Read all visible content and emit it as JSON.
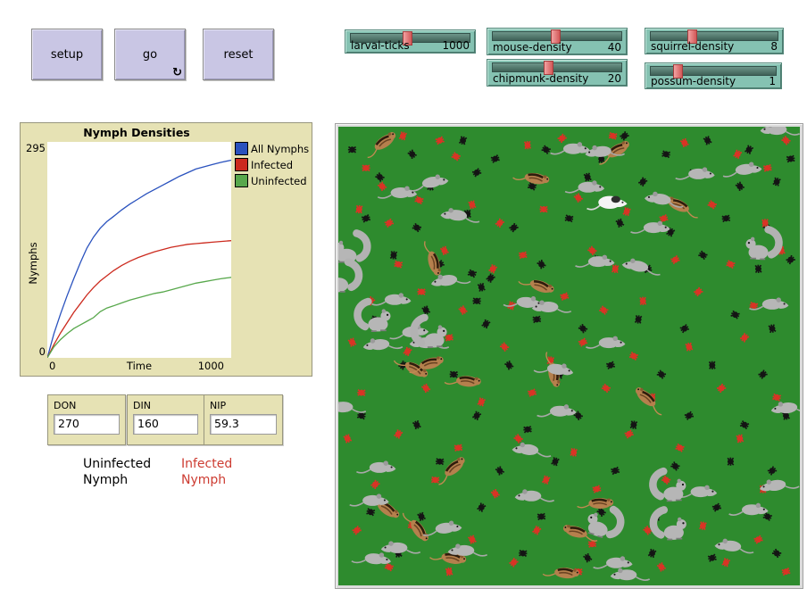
{
  "buttons": {
    "setup_label": "setup",
    "go_label": "go",
    "go_forever_icon": "↻",
    "reset_label": "reset"
  },
  "sliders": [
    {
      "name": "larval-ticks",
      "value": "1000",
      "handle_pct": 47
    },
    {
      "name": "mouse-density",
      "value": "40",
      "handle_pct": 48
    },
    {
      "name": "squirrel-density",
      "value": "8",
      "handle_pct": 33
    },
    {
      "name": "chipmunk-density",
      "value": "20",
      "handle_pct": 43
    },
    {
      "name": "possum-density",
      "value": "1",
      "handle_pct": 23
    }
  ],
  "chart_data": {
    "type": "line",
    "title": "Nymph Densities",
    "xlabel": "Time",
    "ylabel": "Nymphs",
    "xlim": [
      0,
      1114
    ],
    "ylim": [
      0,
      295
    ],
    "x_tick_labels": [
      "0",
      "1000"
    ],
    "y_tick_labels": [
      "0",
      "295"
    ],
    "grid": false,
    "legend_position": "right-top",
    "x": [
      0,
      40,
      80,
      120,
      160,
      200,
      240,
      280,
      320,
      360,
      400,
      450,
      500,
      550,
      600,
      650,
      700,
      750,
      800,
      850,
      900,
      950,
      1000,
      1050,
      1114
    ],
    "series": [
      {
        "name": "All Nymphs",
        "color": "#2a52be",
        "values": [
          0,
          33,
          60,
          85,
          108,
          130,
          150,
          165,
          177,
          186,
          193,
          202,
          210,
          217,
          224,
          230,
          236,
          242,
          248,
          253,
          258,
          261,
          264,
          267,
          270
        ]
      },
      {
        "name": "Infected",
        "color": "#cc2a1e",
        "values": [
          0,
          18,
          34,
          48,
          62,
          74,
          86,
          96,
          105,
          112,
          119,
          126,
          132,
          137,
          141,
          145,
          148,
          151,
          153,
          155,
          156,
          157,
          158,
          159,
          160
        ]
      },
      {
        "name": "Uninfected",
        "color": "#58a84c",
        "values": [
          0,
          15,
          25,
          33,
          40,
          45,
          50,
          55,
          63,
          68,
          71,
          75,
          79,
          82,
          85,
          88,
          90,
          93,
          96,
          99,
          102,
          104,
          106,
          108,
          110
        ]
      }
    ],
    "legend": [
      {
        "label": "All Nymphs",
        "color": "#2a52be"
      },
      {
        "label": "Infected",
        "color": "#cc2a1e"
      },
      {
        "label": "Uninfected",
        "color": "#58a84c"
      }
    ]
  },
  "monitors": [
    {
      "label": "DON",
      "value": "270"
    },
    {
      "label": "DIN",
      "value": "160"
    },
    {
      "label": "NIP",
      "value": "59.3"
    }
  ],
  "notes": [
    {
      "lines": "Uninfected\nNymph",
      "color": "#000000"
    },
    {
      "lines": "Infected\nNymph",
      "color": "#cd3c32"
    }
  ],
  "world": {
    "background": "#2e8b2e",
    "colors": {
      "infected_tick": "#da3325",
      "uninfected_tick": "#141414"
    },
    "mice": [
      [
        13.5,
        14.4,
        0,
        1
      ],
      [
        20.3,
        12.1,
        -10,
        1
      ],
      [
        25.7,
        19.3,
        5,
        -1
      ],
      [
        50.9,
        4.8,
        0,
        1
      ],
      [
        57,
        5.4,
        -5,
        -1
      ],
      [
        54.1,
        13.2,
        0,
        1
      ],
      [
        69.9,
        15.8,
        8,
        -1
      ],
      [
        78,
        10.3,
        0,
        1
      ],
      [
        88.2,
        9.3,
        -6,
        1
      ],
      [
        95,
        0.6,
        0,
        -1
      ],
      [
        68.3,
        22,
        0,
        1
      ],
      [
        65,
        30.4,
        10,
        -1
      ],
      [
        56.3,
        29.4,
        0,
        1
      ],
      [
        23.6,
        33.5,
        -8,
        -1
      ],
      [
        12.2,
        37.7,
        0,
        1
      ],
      [
        40.8,
        38.3,
        5,
        1
      ],
      [
        45.5,
        39.3,
        0,
        -1
      ],
      [
        58.6,
        47.1,
        0,
        1
      ],
      [
        8.9,
        47.5,
        -5,
        -1
      ],
      [
        94,
        38.7,
        0,
        1
      ],
      [
        47.4,
        52.9,
        8,
        1
      ],
      [
        1,
        61.1,
        0,
        -1
      ],
      [
        48,
        62,
        0,
        1
      ],
      [
        97.3,
        61.3,
        -5,
        -1
      ],
      [
        8.9,
        74.3,
        0,
        1
      ],
      [
        41.2,
        70.4,
        5,
        -1
      ],
      [
        7.4,
        81.5,
        0,
        1
      ],
      [
        41.8,
        80.5,
        0,
        -1
      ],
      [
        23.2,
        87.5,
        -6,
        1
      ],
      [
        12.8,
        91.8,
        0,
        -1
      ],
      [
        7.9,
        94.2,
        5,
        1
      ],
      [
        27.3,
        92.4,
        0,
        -1
      ],
      [
        78.5,
        79.6,
        0,
        1
      ],
      [
        94.8,
        78.2,
        -8,
        -1
      ],
      [
        89.6,
        83.5,
        0,
        1
      ],
      [
        85.1,
        91.4,
        5,
        -1
      ],
      [
        60.2,
        95.1,
        0,
        1
      ],
      [
        62.5,
        97.7,
        0,
        -1
      ],
      [
        16,
        44.7,
        -5,
        1
      ],
      [
        19,
        47.1,
        0,
        -1
      ]
    ],
    "squirrels": [
      [
        2.3,
        26.7,
        0,
        -1
      ],
      [
        0.5,
        33,
        0,
        -1
      ],
      [
        8.1,
        41.6,
        0,
        1
      ],
      [
        20.3,
        45.1,
        0,
        1
      ],
      [
        91.5,
        25.9,
        0,
        -1
      ],
      [
        72.1,
        78.6,
        0,
        1
      ],
      [
        72.2,
        87,
        0,
        1
      ],
      [
        57.1,
        86.4,
        15,
        -1
      ]
    ],
    "chipmunks": [
      [
        10,
        3.3,
        -35,
        1
      ],
      [
        60.5,
        5.1,
        -30,
        1
      ],
      [
        42.8,
        11.3,
        10,
        1
      ],
      [
        73.7,
        17.1,
        25,
        -1
      ],
      [
        20.7,
        29.6,
        75,
        1
      ],
      [
        43.9,
        34.8,
        20,
        1
      ],
      [
        16.7,
        52.9,
        30,
        1
      ],
      [
        20,
        51.6,
        -15,
        1
      ],
      [
        28,
        55.5,
        5,
        1
      ],
      [
        46.7,
        53.9,
        80,
        1
      ],
      [
        66.7,
        59.1,
        40,
        -1
      ],
      [
        25.1,
        74.3,
        -40,
        1
      ],
      [
        10.6,
        83.4,
        35,
        1
      ],
      [
        17.4,
        87.9,
        55,
        1
      ],
      [
        24.8,
        94.1,
        10,
        1
      ],
      [
        56.7,
        82.1,
        0,
        1
      ],
      [
        51.5,
        88.3,
        15,
        -1
      ],
      [
        49.3,
        97.3,
        5,
        1
      ]
    ],
    "possums": [
      [
        58.8,
        16.5,
        0,
        1
      ]
    ],
    "infected_ticks": [
      [
        6,
        9
      ],
      [
        9.5,
        13
      ],
      [
        14,
        2
      ],
      [
        22,
        3
      ],
      [
        25.5,
        6.5
      ],
      [
        41,
        4
      ],
      [
        48.5,
        2.5
      ],
      [
        59.5,
        2
      ],
      [
        75,
        3.5
      ],
      [
        86.5,
        6
      ],
      [
        93,
        9
      ],
      [
        97,
        3
      ],
      [
        4.5,
        18
      ],
      [
        11,
        21
      ],
      [
        17.5,
        16
      ],
      [
        29,
        17
      ],
      [
        35,
        21
      ],
      [
        44.5,
        18
      ],
      [
        52,
        15.5
      ],
      [
        62.5,
        18.5
      ],
      [
        70.5,
        20
      ],
      [
        81,
        17
      ],
      [
        92.5,
        21
      ],
      [
        2.5,
        28
      ],
      [
        13,
        30
      ],
      [
        23,
        27
      ],
      [
        33.5,
        31
      ],
      [
        40,
        28
      ],
      [
        55,
        27
      ],
      [
        60,
        31
      ],
      [
        73,
        29
      ],
      [
        85,
        30
      ],
      [
        96,
        27
      ],
      [
        7,
        38
      ],
      [
        18,
        36
      ],
      [
        27,
        40
      ],
      [
        37.5,
        39
      ],
      [
        49,
        37
      ],
      [
        57.5,
        40
      ],
      [
        66,
        38
      ],
      [
        78,
        36
      ],
      [
        90,
        39
      ],
      [
        3,
        47
      ],
      [
        15,
        49
      ],
      [
        24,
        46
      ],
      [
        36,
        48
      ],
      [
        46,
        51
      ],
      [
        53,
        47
      ],
      [
        64,
        50
      ],
      [
        76,
        48
      ],
      [
        88,
        46
      ],
      [
        5,
        58
      ],
      [
        19,
        57
      ],
      [
        31,
        60
      ],
      [
        42,
        58
      ],
      [
        58,
        57
      ],
      [
        68,
        59
      ],
      [
        83,
        57
      ],
      [
        95,
        59
      ],
      [
        2,
        68
      ],
      [
        13,
        67
      ],
      [
        26,
        70
      ],
      [
        39,
        68
      ],
      [
        51,
        71
      ],
      [
        63,
        67
      ],
      [
        74,
        70
      ],
      [
        87,
        68
      ],
      [
        8,
        78
      ],
      [
        21,
        77
      ],
      [
        34,
        80
      ],
      [
        45,
        77
      ],
      [
        56,
        79
      ],
      [
        71,
        77
      ],
      [
        92,
        79
      ],
      [
        4,
        88
      ],
      [
        16,
        87
      ],
      [
        29,
        90
      ],
      [
        43,
        88
      ],
      [
        55,
        91
      ],
      [
        67,
        88
      ],
      [
        79,
        87
      ],
      [
        91,
        90
      ],
      [
        11,
        96
      ],
      [
        24,
        97
      ],
      [
        38,
        95
      ],
      [
        52,
        97
      ],
      [
        70,
        96
      ],
      [
        84,
        95
      ],
      [
        97,
        97
      ]
    ],
    "uninfected_ticks": [
      [
        3,
        5
      ],
      [
        16,
        6
      ],
      [
        27,
        3
      ],
      [
        34,
        7
      ],
      [
        45,
        5
      ],
      [
        57,
        7
      ],
      [
        62,
        2
      ],
      [
        71,
        6
      ],
      [
        80,
        3
      ],
      [
        89,
        5
      ],
      [
        98,
        7
      ],
      [
        9,
        11
      ],
      [
        20,
        13
      ],
      [
        30,
        10
      ],
      [
        42,
        13
      ],
      [
        54,
        11
      ],
      [
        66,
        12
      ],
      [
        77,
        10
      ],
      [
        87,
        13
      ],
      [
        95,
        12
      ],
      [
        6,
        20
      ],
      [
        17,
        22
      ],
      [
        28,
        19
      ],
      [
        38,
        22
      ],
      [
        50,
        20
      ],
      [
        61,
        21
      ],
      [
        72,
        23
      ],
      [
        84,
        20
      ],
      [
        93,
        22
      ],
      [
        12,
        28
      ],
      [
        22,
        30
      ],
      [
        29,
        32
      ],
      [
        31,
        35
      ],
      [
        33,
        33
      ],
      [
        30,
        38
      ],
      [
        44,
        30
      ],
      [
        56,
        29
      ],
      [
        67,
        31
      ],
      [
        79,
        28
      ],
      [
        91,
        31
      ],
      [
        98,
        29
      ],
      [
        8,
        42
      ],
      [
        19,
        40
      ],
      [
        32,
        43
      ],
      [
        43,
        42
      ],
      [
        53,
        44
      ],
      [
        65,
        42
      ],
      [
        75,
        44
      ],
      [
        86,
        41
      ],
      [
        94,
        44
      ],
      [
        14,
        52
      ],
      [
        25,
        54
      ],
      [
        37,
        52
      ],
      [
        48,
        54
      ],
      [
        59,
        52
      ],
      [
        70,
        54
      ],
      [
        81,
        52
      ],
      [
        92,
        54
      ],
      [
        5,
        63
      ],
      [
        17,
        65
      ],
      [
        30,
        63
      ],
      [
        41,
        66
      ],
      [
        52,
        63
      ],
      [
        64,
        65
      ],
      [
        76,
        63
      ],
      [
        88,
        65
      ],
      [
        97,
        63
      ],
      [
        10,
        74
      ],
      [
        22,
        73
      ],
      [
        35,
        75
      ],
      [
        47,
        73
      ],
      [
        60,
        75
      ],
      [
        73,
        74
      ],
      [
        85,
        73
      ],
      [
        94,
        75
      ],
      [
        7,
        84
      ],
      [
        18,
        85
      ],
      [
        31,
        83
      ],
      [
        44,
        85
      ],
      [
        57,
        84
      ],
      [
        69,
        85
      ],
      [
        82,
        83
      ],
      [
        93,
        85
      ],
      [
        13,
        93
      ],
      [
        26,
        94
      ],
      [
        40,
        93
      ],
      [
        54,
        94
      ],
      [
        68,
        93
      ],
      [
        81,
        94
      ],
      [
        95,
        93
      ]
    ]
  }
}
